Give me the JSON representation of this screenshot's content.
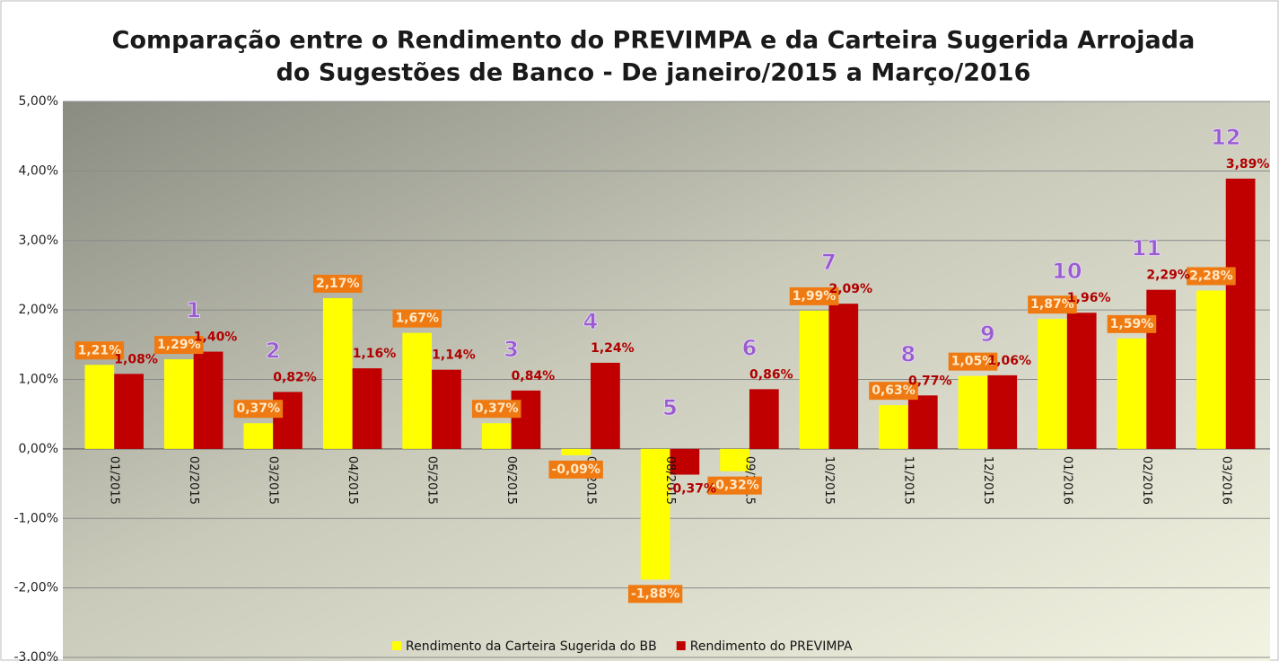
{
  "chart_data": {
    "type": "bar",
    "title": [
      "Comparação entre o  Rendimento do PREVIMPA e da Carteira  Sugerida Arrojada",
      "do Sugestões de Banco - De janeiro/2015 a Março/2016"
    ],
    "categories": [
      "01/2015",
      "02/2015",
      "03/2015",
      "04/2015",
      "05/2015",
      "06/2015",
      "07/2015",
      "08/2015",
      "09/2015",
      "10/2015",
      "11/2015",
      "12/2015",
      "01/2016",
      "02/2016",
      "03/2016"
    ],
    "series": [
      {
        "name": "Rendimento da Carteira Sugerida do BB",
        "color": "#ffff00",
        "values": [
          1.21,
          1.29,
          0.37,
          2.17,
          1.67,
          0.37,
          -0.09,
          -1.88,
          -0.32,
          1.99,
          0.63,
          1.05,
          1.87,
          1.59,
          2.28
        ],
        "value_labels": [
          "1,21%",
          "1,29%",
          "0,37%",
          "2,17%",
          "1,67%",
          "0,37%",
          "-0,09%",
          "-1,88%",
          "-0,32%",
          "1,99%",
          "0,63%",
          "1,05%",
          "1,87%",
          "1,59%",
          "2,28%"
        ]
      },
      {
        "name": "Rendimento do PREVIMPA",
        "color": "#c00000",
        "values": [
          1.08,
          1.4,
          0.82,
          1.16,
          1.14,
          0.84,
          1.24,
          -0.37,
          0.86,
          2.09,
          0.77,
          1.06,
          1.96,
          2.29,
          3.89
        ],
        "value_labels": [
          "1,08%",
          "1,40%",
          "0,82%",
          "1,16%",
          "1,14%",
          "0,84%",
          "1,24%",
          "-0,37%",
          "0,86%",
          "2,09%",
          "0,77%",
          "1,06%",
          "1,96%",
          "2,29%",
          "3,89%"
        ]
      }
    ],
    "annotations": [
      null,
      "1",
      "2",
      null,
      null,
      "3",
      "4",
      "5",
      "6",
      "7",
      "8",
      "9",
      "10",
      "11",
      "12"
    ],
    "ylim": [
      -3,
      5
    ],
    "yticks": [
      {
        "value": -3,
        "label": "-3,00%"
      },
      {
        "value": -2,
        "label": "-2,00%"
      },
      {
        "value": -1,
        "label": "-1,00%"
      },
      {
        "value": 0,
        "label": "0,00%"
      },
      {
        "value": 1,
        "label": "1,00%"
      },
      {
        "value": 2,
        "label": "2,00%"
      },
      {
        "value": 3,
        "label": "3,00%"
      },
      {
        "value": 4,
        "label": "4,00%"
      },
      {
        "value": 5,
        "label": "5,00%"
      }
    ],
    "grid": true,
    "legend": "bottom"
  }
}
